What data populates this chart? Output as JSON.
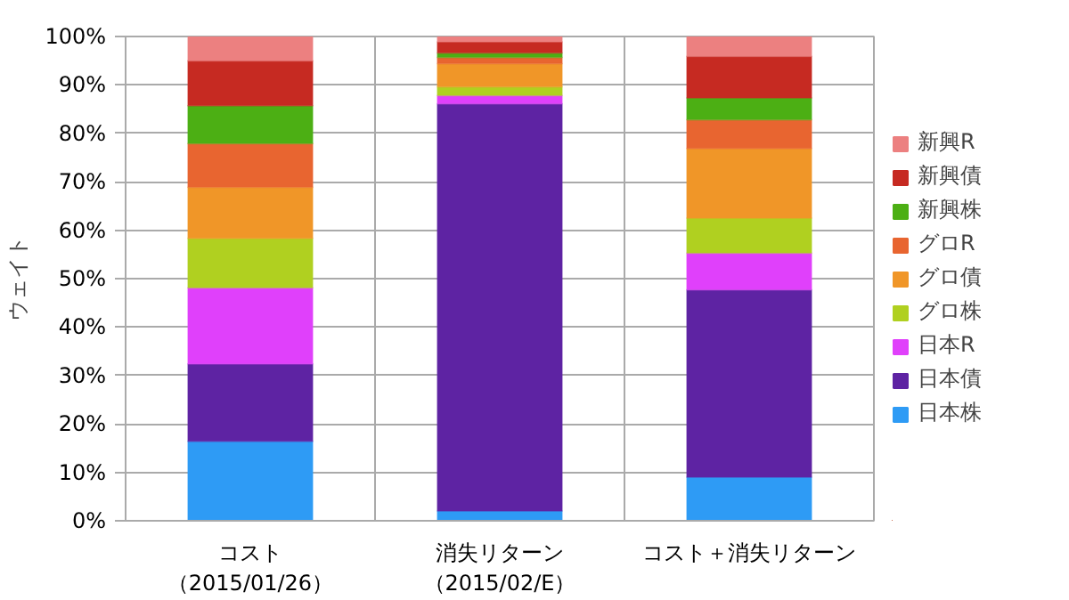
{
  "chart_data": {
    "type": "bar",
    "stacked": true,
    "ylabel": "ウェイト",
    "categories": [
      "コスト（2015/01/26）",
      "消失リターン（2015/02/E）",
      "コスト＋消失リターン"
    ],
    "series": [
      {
        "name": "日本株",
        "color": "#2e9bf5",
        "values": [
          16.4,
          2.0,
          9.0
        ]
      },
      {
        "name": "日本債",
        "color": "#5e23a3",
        "values": [
          16.0,
          84.1,
          38.7
        ]
      },
      {
        "name": "日本R",
        "color": "#e040fb",
        "values": [
          15.7,
          1.7,
          7.6
        ]
      },
      {
        "name": "グロ株",
        "color": "#b0d020",
        "values": [
          10.2,
          1.8,
          7.2
        ]
      },
      {
        "name": "グロ債",
        "color": "#f09628",
        "values": [
          10.6,
          4.8,
          14.4
        ]
      },
      {
        "name": "グロR",
        "color": "#e86530",
        "values": [
          9.0,
          1.3,
          5.9
        ]
      },
      {
        "name": "新興株",
        "color": "#4caf14",
        "values": [
          7.8,
          0.9,
          4.5
        ]
      },
      {
        "name": "新興債",
        "color": "#c62a22",
        "values": [
          9.3,
          2.3,
          8.6
        ]
      },
      {
        "name": "新興R",
        "color": "#ec8080",
        "values": [
          5.0,
          1.1,
          4.1
        ]
      }
    ],
    "ylim": [
      0,
      100
    ],
    "yticks": [
      {
        "value": 0,
        "label": "0%"
      },
      {
        "value": 10,
        "label": "10%"
      },
      {
        "value": 20,
        "label": "20%"
      },
      {
        "value": 30,
        "label": "30%"
      },
      {
        "value": 40,
        "label": "40%"
      },
      {
        "value": 50,
        "label": "50%"
      },
      {
        "value": 60,
        "label": "60%"
      },
      {
        "value": 70,
        "label": "70%"
      },
      {
        "value": 80,
        "label": "80%"
      },
      {
        "value": 90,
        "label": "90%"
      },
      {
        "value": 100,
        "label": "100%"
      }
    ],
    "grid": true,
    "legend": "right"
  }
}
